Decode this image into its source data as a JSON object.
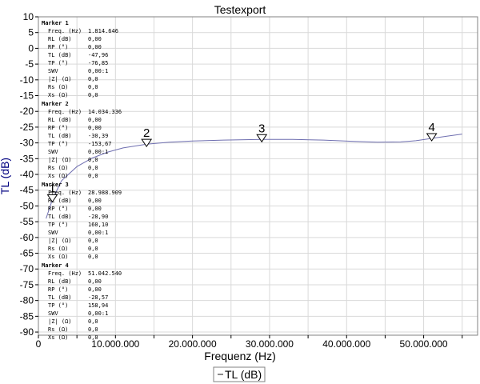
{
  "chart_data": {
    "type": "line",
    "title": "Testexport",
    "xlabel": "Frequenz (Hz)",
    "ylabel": "TL (dB)",
    "xlim": [
      0,
      57000000
    ],
    "ylim": [
      -91,
      10
    ],
    "x_ticks": [
      0,
      10000000,
      20000000,
      30000000,
      40000000,
      50000000
    ],
    "x_tick_labels": [
      "0",
      "10.000.000",
      "20.000.000",
      "30.000.000",
      "40.000.000",
      "50.000.000"
    ],
    "y_ticks": [
      10,
      5,
      0,
      -5,
      -10,
      -15,
      -20,
      -25,
      -30,
      -35,
      -40,
      -45,
      -50,
      -55,
      -60,
      -65,
      -70,
      -75,
      -80,
      -85,
      -90
    ],
    "y_tick_labels": [
      "10",
      "5",
      "0",
      "-5",
      "-10",
      "-15",
      "-20",
      "-25",
      "-30",
      "-35",
      "-40",
      "-45",
      "-50",
      "-55",
      "-60",
      "-65",
      "-70",
      "-75",
      "-80",
      "-85",
      "-90"
    ],
    "grid": true,
    "legend_position": "bottom-center",
    "series": [
      {
        "name": "TL (dB)",
        "color": "#6f6fb0",
        "x": [
          1000000,
          1814646,
          3000000,
          5000000,
          7000000,
          9000000,
          11000000,
          14034336,
          17000000,
          20000000,
          24000000,
          28988909,
          33000000,
          37000000,
          41000000,
          44000000,
          47000000,
          49000000,
          51042540,
          53000000,
          55000000
        ],
        "y": [
          -54,
          -47.96,
          -42,
          -37.5,
          -34.8,
          -32.9,
          -31.6,
          -30.39,
          -29.8,
          -29.4,
          -29.1,
          -28.9,
          -28.9,
          -29.1,
          -29.5,
          -29.8,
          -29.7,
          -29.3,
          -28.57,
          -27.9,
          -27.2
        ]
      }
    ],
    "markers": [
      {
        "id": "1",
        "title": "Marker 1",
        "freq": 1814646,
        "tl": -47.96,
        "rows": [
          {
            "label": "Freq. (Hz)",
            "value": "1.814.646"
          },
          {
            "label": "RL (dB)",
            "value": "0,00"
          },
          {
            "label": "RP (°)",
            "value": "0,00"
          },
          {
            "label": "TL (dB)",
            "value": "-47,96"
          },
          {
            "label": "TP (°)",
            "value": "-76,85"
          },
          {
            "label": "SWV",
            "value": "0,00:1"
          },
          {
            "label": "|Z| (Ω)",
            "value": "0,0"
          },
          {
            "label": "Rs (Ω)",
            "value": "0,0"
          },
          {
            "label": "Xs (Ω)",
            "value": "0,0"
          }
        ]
      },
      {
        "id": "2",
        "title": "Marker 2",
        "freq": 14034336,
        "tl": -30.39,
        "rows": [
          {
            "label": "Freq. (Hz)",
            "value": "14.034.336"
          },
          {
            "label": "RL (dB)",
            "value": "0,00"
          },
          {
            "label": "RP (°)",
            "value": "0,00"
          },
          {
            "label": "TL (dB)",
            "value": "-30,39"
          },
          {
            "label": "TP (°)",
            "value": "-153,67"
          },
          {
            "label": "SWV",
            "value": "0,00:1"
          },
          {
            "label": "|Z| (Ω)",
            "value": "0,0"
          },
          {
            "label": "Rs (Ω)",
            "value": "0,0"
          },
          {
            "label": "Xs (Ω)",
            "value": "0,0"
          }
        ]
      },
      {
        "id": "3",
        "title": "Marker 3",
        "freq": 28988909,
        "tl": -28.9,
        "rows": [
          {
            "label": "Freq. (Hz)",
            "value": "28.988.909"
          },
          {
            "label": "RL (dB)",
            "value": "0,00"
          },
          {
            "label": "RP (°)",
            "value": "0,00"
          },
          {
            "label": "TL (dB)",
            "value": "-28,90"
          },
          {
            "label": "TP (°)",
            "value": "160,10"
          },
          {
            "label": "SWV",
            "value": "0,00:1"
          },
          {
            "label": "|Z| (Ω)",
            "value": "0,0"
          },
          {
            "label": "Rs (Ω)",
            "value": "0,0"
          },
          {
            "label": "Xs (Ω)",
            "value": "0,0"
          }
        ]
      },
      {
        "id": "4",
        "title": "Marker 4",
        "freq": 51042540,
        "tl": -28.57,
        "rows": [
          {
            "label": "Freq. (Hz)",
            "value": "51.042.540"
          },
          {
            "label": "RL (dB)",
            "value": "0,00"
          },
          {
            "label": "RP (°)",
            "value": "0,00"
          },
          {
            "label": "TL (dB)",
            "value": "-28,57"
          },
          {
            "label": "TP (°)",
            "value": "158,94"
          },
          {
            "label": "SWV",
            "value": "0,00:1"
          },
          {
            "label": "|Z| (Ω)",
            "value": "0,0"
          },
          {
            "label": "Rs (Ω)",
            "value": "0,0"
          },
          {
            "label": "Xs (Ω)",
            "value": "0,0"
          }
        ]
      }
    ]
  },
  "legend": {
    "label": "TL (dB)"
  }
}
